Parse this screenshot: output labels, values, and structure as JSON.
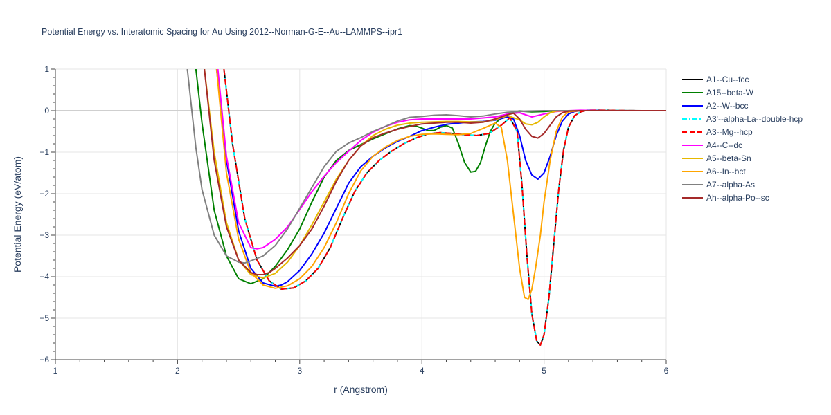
{
  "chart_data": {
    "type": "line",
    "title": "Potential Energy vs. Interatomic Spacing for Au Using 2012--Norman-G-E--Au--LAMMPS--ipr1",
    "xlabel": "r (Angstrom)",
    "ylabel": "Potential Energy (eV/atom)",
    "xlim": [
      1,
      6
    ],
    "ylim": [
      -6,
      1
    ],
    "xticks": [
      1,
      2,
      3,
      4,
      5,
      6
    ],
    "yticks": [
      1,
      0,
      -1,
      -2,
      -3,
      -4,
      -5,
      -6
    ],
    "ytick_labels": [
      "1",
      "0",
      "−1",
      "−2",
      "−3",
      "−4",
      "−5",
      "−6"
    ],
    "grid": true,
    "legend_position": "top-right",
    "series": [
      {
        "name": "A1--Cu--fcc",
        "color": "#000000",
        "dash": "solid",
        "x": [
          2.38,
          2.45,
          2.55,
          2.65,
          2.75,
          2.85,
          2.95,
          3.05,
          3.15,
          3.25,
          3.35,
          3.45,
          3.55,
          3.65,
          3.75,
          3.85,
          3.95,
          4.05,
          4.15,
          4.25,
          4.35,
          4.45,
          4.55,
          4.65,
          4.72,
          4.78,
          4.82,
          4.86,
          4.9,
          4.94,
          4.97,
          5.0,
          5.04,
          5.08,
          5.12,
          5.16,
          5.2,
          5.25,
          5.3,
          5.35,
          5.45,
          5.6,
          5.8,
          6.0
        ],
        "y": [
          1.0,
          -0.8,
          -2.6,
          -3.6,
          -4.1,
          -4.3,
          -4.27,
          -4.1,
          -3.8,
          -3.3,
          -2.6,
          -1.95,
          -1.5,
          -1.2,
          -0.98,
          -0.8,
          -0.66,
          -0.56,
          -0.53,
          -0.55,
          -0.58,
          -0.6,
          -0.55,
          -0.35,
          -0.17,
          -0.5,
          -1.8,
          -3.5,
          -4.9,
          -5.55,
          -5.65,
          -5.4,
          -4.5,
          -3.2,
          -1.9,
          -0.95,
          -0.4,
          -0.12,
          -0.03,
          0.01,
          0.01,
          0.005,
          0.0,
          0.0
        ]
      },
      {
        "name": "A15--beta-W",
        "color": "#008000",
        "dash": "solid",
        "x": [
          2.15,
          2.2,
          2.3,
          2.4,
          2.5,
          2.6,
          2.7,
          2.8,
          2.9,
          3.0,
          3.1,
          3.2,
          3.3,
          3.4,
          3.5,
          3.6,
          3.7,
          3.8,
          3.9,
          3.95,
          4.0,
          4.05,
          4.1,
          4.15,
          4.2,
          4.25,
          4.3,
          4.35,
          4.4,
          4.44,
          4.48,
          4.52,
          4.56,
          4.6,
          4.65,
          4.7,
          4.75,
          4.8,
          4.9,
          5.0,
          5.1,
          5.3,
          5.6,
          6.0
        ],
        "y": [
          1.0,
          -0.3,
          -2.4,
          -3.5,
          -4.05,
          -4.17,
          -4.05,
          -3.75,
          -3.35,
          -2.85,
          -2.2,
          -1.6,
          -1.2,
          -0.96,
          -0.82,
          -0.68,
          -0.56,
          -0.44,
          -0.36,
          -0.37,
          -0.42,
          -0.48,
          -0.48,
          -0.4,
          -0.36,
          -0.42,
          -0.8,
          -1.25,
          -1.48,
          -1.46,
          -1.25,
          -0.85,
          -0.5,
          -0.3,
          -0.18,
          -0.08,
          -0.03,
          -0.01,
          -0.03,
          -0.02,
          0.0,
          0.0,
          0.0,
          0.0
        ]
      },
      {
        "name": "A2--W--bcc",
        "color": "#0000ff",
        "dash": "solid",
        "x": [
          2.32,
          2.4,
          2.5,
          2.6,
          2.7,
          2.8,
          2.85,
          2.9,
          3.0,
          3.1,
          3.2,
          3.3,
          3.4,
          3.5,
          3.6,
          3.7,
          3.8,
          3.9,
          4.0,
          4.1,
          4.2,
          4.3,
          4.4,
          4.5,
          4.6,
          4.7,
          4.75,
          4.8,
          4.85,
          4.9,
          4.95,
          5.0,
          5.05,
          5.1,
          5.15,
          5.2,
          5.25,
          5.3,
          5.4,
          5.6,
          6.0
        ],
        "y": [
          1.0,
          -1.2,
          -2.9,
          -3.8,
          -4.15,
          -4.23,
          -4.2,
          -4.12,
          -3.85,
          -3.45,
          -2.95,
          -2.35,
          -1.75,
          -1.35,
          -1.1,
          -0.9,
          -0.74,
          -0.62,
          -0.48,
          -0.4,
          -0.33,
          -0.3,
          -0.27,
          -0.26,
          -0.23,
          -0.15,
          -0.2,
          -0.6,
          -1.2,
          -1.55,
          -1.65,
          -1.5,
          -1.1,
          -0.6,
          -0.25,
          -0.08,
          -0.02,
          0.0,
          0.0,
          0.0,
          0.0
        ]
      },
      {
        "name": "A3'--alpha-La--double-hcp",
        "color": "#00ffff",
        "dash": "dashdot",
        "x": [
          2.38,
          2.45,
          2.55,
          2.65,
          2.75,
          2.85,
          2.95,
          3.05,
          3.15,
          3.25,
          3.35,
          3.45,
          3.55,
          3.65,
          3.75,
          3.85,
          3.95,
          4.05,
          4.15,
          4.25,
          4.35,
          4.45,
          4.55,
          4.65,
          4.72,
          4.78,
          4.82,
          4.86,
          4.9,
          4.94,
          4.97,
          5.0,
          5.04,
          5.08,
          5.12,
          5.16,
          5.2,
          5.25,
          5.3,
          5.35,
          5.45,
          5.6,
          5.8,
          6.0
        ],
        "y": [
          1.0,
          -0.8,
          -2.6,
          -3.6,
          -4.1,
          -4.3,
          -4.27,
          -4.1,
          -3.8,
          -3.3,
          -2.6,
          -1.95,
          -1.5,
          -1.2,
          -0.98,
          -0.8,
          -0.66,
          -0.56,
          -0.53,
          -0.55,
          -0.58,
          -0.6,
          -0.55,
          -0.35,
          -0.17,
          -0.5,
          -1.8,
          -3.5,
          -4.9,
          -5.55,
          -5.65,
          -5.4,
          -4.5,
          -3.2,
          -1.9,
          -0.95,
          -0.4,
          -0.12,
          -0.03,
          0.01,
          0.01,
          0.005,
          0.0,
          0.0
        ]
      },
      {
        "name": "A3--Mg--hcp",
        "color": "#ff0000",
        "dash": "dash",
        "x": [
          2.38,
          2.45,
          2.55,
          2.65,
          2.75,
          2.85,
          2.95,
          3.05,
          3.15,
          3.25,
          3.35,
          3.45,
          3.55,
          3.65,
          3.75,
          3.85,
          3.95,
          4.05,
          4.15,
          4.25,
          4.35,
          4.45,
          4.55,
          4.65,
          4.72,
          4.78,
          4.82,
          4.86,
          4.9,
          4.94,
          4.97,
          5.0,
          5.04,
          5.08,
          5.12,
          5.16,
          5.2,
          5.25,
          5.3,
          5.35,
          5.45,
          5.6,
          5.8,
          6.0
        ],
        "y": [
          1.0,
          -0.8,
          -2.6,
          -3.6,
          -4.1,
          -4.3,
          -4.27,
          -4.1,
          -3.8,
          -3.3,
          -2.6,
          -1.95,
          -1.5,
          -1.2,
          -0.98,
          -0.8,
          -0.66,
          -0.56,
          -0.53,
          -0.55,
          -0.58,
          -0.6,
          -0.55,
          -0.35,
          -0.17,
          -0.5,
          -1.8,
          -3.5,
          -4.9,
          -5.55,
          -5.65,
          -5.4,
          -4.5,
          -3.2,
          -1.9,
          -0.95,
          -0.4,
          -0.12,
          -0.03,
          0.01,
          0.01,
          0.005,
          0.0,
          0.0
        ]
      },
      {
        "name": "A4--C--dc",
        "color": "#ff00ff",
        "dash": "solid",
        "x": [
          2.33,
          2.4,
          2.5,
          2.6,
          2.65,
          2.7,
          2.8,
          2.9,
          3.0,
          3.1,
          3.2,
          3.3,
          3.4,
          3.5,
          3.6,
          3.7,
          3.8,
          3.9,
          4.0,
          4.2,
          4.4,
          4.6,
          4.7,
          4.8,
          4.9,
          5.0,
          5.1,
          5.2,
          5.3,
          5.5,
          6.0
        ],
        "y": [
          1.0,
          -1.1,
          -2.7,
          -3.3,
          -3.33,
          -3.3,
          -3.1,
          -2.8,
          -2.38,
          -1.95,
          -1.58,
          -1.25,
          -0.98,
          -0.72,
          -0.52,
          -0.38,
          -0.28,
          -0.22,
          -0.2,
          -0.2,
          -0.2,
          -0.15,
          -0.08,
          -0.05,
          -0.15,
          -0.08,
          -0.02,
          0.0,
          0.01,
          0.0,
          0.0
        ]
      },
      {
        "name": "A5--beta-Sn",
        "color": "#e6b800",
        "dash": "solid",
        "x": [
          2.22,
          2.3,
          2.4,
          2.5,
          2.6,
          2.7,
          2.8,
          2.9,
          3.0,
          3.1,
          3.2,
          3.3,
          3.4,
          3.5,
          3.6,
          3.7,
          3.8,
          3.9,
          4.0,
          4.1,
          4.2,
          4.3,
          4.4,
          4.5,
          4.6,
          4.7,
          4.8,
          4.85,
          4.9,
          4.95,
          5.0,
          5.05,
          5.1,
          5.2,
          5.3,
          5.5,
          6.0
        ],
        "y": [
          1.0,
          -1.0,
          -2.7,
          -3.6,
          -3.95,
          -4.03,
          -3.92,
          -3.65,
          -3.25,
          -2.75,
          -2.2,
          -1.65,
          -1.2,
          -0.85,
          -0.6,
          -0.45,
          -0.35,
          -0.3,
          -0.28,
          -0.27,
          -0.26,
          -0.26,
          -0.27,
          -0.27,
          -0.22,
          -0.12,
          -0.22,
          -0.32,
          -0.34,
          -0.28,
          -0.15,
          -0.05,
          -0.01,
          0.0,
          0.0,
          0.0,
          0.0
        ]
      },
      {
        "name": "A6--In--bct",
        "color": "#ffa500",
        "dash": "solid",
        "x": [
          2.32,
          2.4,
          2.5,
          2.6,
          2.7,
          2.8,
          2.9,
          3.0,
          3.1,
          3.2,
          3.3,
          3.4,
          3.5,
          3.6,
          3.7,
          3.8,
          3.9,
          4.0,
          4.1,
          4.2,
          4.3,
          4.4,
          4.5,
          4.6,
          4.65,
          4.7,
          4.75,
          4.8,
          4.84,
          4.87,
          4.9,
          4.93,
          4.97,
          5.0,
          5.05,
          5.1,
          5.15,
          5.2,
          5.3,
          5.5,
          6.0
        ],
        "y": [
          1.0,
          -1.5,
          -3.1,
          -3.9,
          -4.2,
          -4.28,
          -4.22,
          -4.05,
          -3.75,
          -3.3,
          -2.7,
          -2.0,
          -1.45,
          -1.1,
          -0.88,
          -0.72,
          -0.62,
          -0.57,
          -0.56,
          -0.57,
          -0.58,
          -0.55,
          -0.43,
          -0.3,
          -0.4,
          -1.2,
          -2.5,
          -3.8,
          -4.5,
          -4.55,
          -4.3,
          -3.8,
          -3.0,
          -2.2,
          -1.2,
          -0.5,
          -0.15,
          -0.03,
          0.0,
          0.0,
          0.0
        ]
      },
      {
        "name": "A7--alpha-As",
        "color": "#808080",
        "dash": "solid",
        "x": [
          2.08,
          2.15,
          2.2,
          2.3,
          2.4,
          2.5,
          2.55,
          2.6,
          2.7,
          2.8,
          2.9,
          3.0,
          3.1,
          3.2,
          3.3,
          3.4,
          3.5,
          3.6,
          3.7,
          3.8,
          3.9,
          3.95,
          4.0,
          4.1,
          4.2,
          4.3,
          4.4,
          4.5,
          4.6,
          4.7,
          4.8,
          4.9,
          5.0,
          5.1,
          5.2,
          5.3,
          5.5,
          6.0
        ],
        "y": [
          1.0,
          -0.9,
          -1.9,
          -3.0,
          -3.5,
          -3.65,
          -3.67,
          -3.62,
          -3.5,
          -3.25,
          -2.85,
          -2.35,
          -1.85,
          -1.35,
          -0.98,
          -0.78,
          -0.65,
          -0.5,
          -0.38,
          -0.25,
          -0.16,
          -0.15,
          -0.14,
          -0.11,
          -0.1,
          -0.12,
          -0.15,
          -0.13,
          -0.08,
          -0.04,
          -0.02,
          -0.01,
          0.0,
          0.0,
          0.0,
          0.0,
          0.0,
          0.0
        ]
      },
      {
        "name": "Ah--alpha-Po--sc",
        "color": "#a52a2a",
        "dash": "solid",
        "x": [
          2.22,
          2.3,
          2.4,
          2.5,
          2.6,
          2.65,
          2.7,
          2.75,
          2.8,
          2.9,
          3.0,
          3.1,
          3.2,
          3.3,
          3.4,
          3.5,
          3.6,
          3.7,
          3.8,
          3.9,
          4.0,
          4.1,
          4.2,
          4.3,
          4.4,
          4.5,
          4.6,
          4.7,
          4.75,
          4.8,
          4.85,
          4.9,
          4.95,
          5.0,
          5.05,
          5.1,
          5.15,
          5.2,
          5.3,
          5.5,
          6.0
        ],
        "y": [
          1.0,
          -1.2,
          -2.8,
          -3.6,
          -3.9,
          -3.95,
          -3.95,
          -3.9,
          -3.8,
          -3.55,
          -3.25,
          -2.85,
          -2.3,
          -1.7,
          -1.2,
          -0.85,
          -0.65,
          -0.54,
          -0.45,
          -0.38,
          -0.32,
          -0.3,
          -0.28,
          -0.28,
          -0.3,
          -0.28,
          -0.2,
          -0.1,
          -0.06,
          -0.2,
          -0.45,
          -0.62,
          -0.66,
          -0.55,
          -0.35,
          -0.15,
          -0.05,
          -0.01,
          0.0,
          0.0,
          0.0
        ]
      }
    ]
  }
}
